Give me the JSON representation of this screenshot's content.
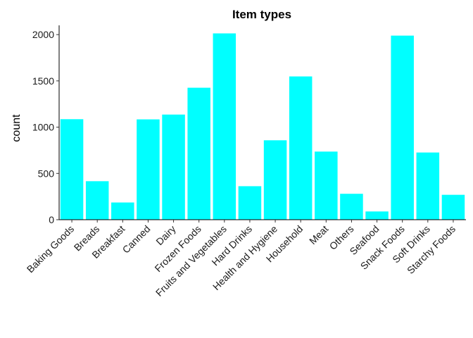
{
  "chart_data": {
    "type": "bar",
    "title": "Item types",
    "xlabel": "",
    "ylabel": "count",
    "categories": [
      "Baking Goods",
      "Breads",
      "Breakfast",
      "Canned",
      "Dairy",
      "Frozen Foods",
      "Fruits and Vegetables",
      "Hard Drinks",
      "Health and Hygiene",
      "Household",
      "Meat",
      "Others",
      "Seafood",
      "Snack Foods",
      "Soft Drinks",
      "Starchy Foods"
    ],
    "values": [
      1086,
      416,
      186,
      1084,
      1136,
      1426,
      2013,
      362,
      858,
      1548,
      736,
      280,
      89,
      1989,
      726,
      269
    ],
    "ylim": [
      0,
      2100
    ],
    "yticks": [
      0,
      500,
      1000,
      1500,
      2000
    ],
    "bar_color": "#00FFFF",
    "grid": false
  }
}
